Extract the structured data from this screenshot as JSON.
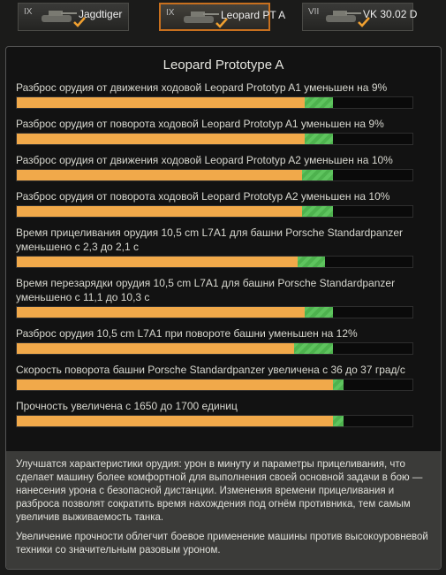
{
  "tabs": [
    {
      "tier": "IX",
      "name": "Jagdtiger"
    },
    {
      "tier": "IX",
      "name": "Leopard PT A"
    },
    {
      "tier": "VII",
      "name": "VK 30.02 D"
    }
  ],
  "panel": {
    "title": "Leopard Prototype A",
    "items": [
      {
        "text": "Разброс орудия от движения ходовой Leopard Prototyp A1 уменьшен на 9%",
        "bar_base": 72.7,
        "bar_total": 80
      },
      {
        "text": "Разброс орудия от поворота ходовой Leopard Prototyp A1 уменьшен на 9%",
        "bar_base": 72.7,
        "bar_total": 80
      },
      {
        "text": "Разброс орудия от движения ходовой Leopard Prototyp A2 уменьшен на 10%",
        "bar_base": 72.2,
        "bar_total": 80
      },
      {
        "text": "Разброс орудия от поворота ходовой Leopard Prototyp A2 уменьшен на 10%",
        "bar_base": 72.2,
        "bar_total": 80
      },
      {
        "text": "Время прицеливания орудия 10,5 cm L7A1 для башни Porsche Standardpanzer уменьшено с 2,3 до 2,1 с",
        "bar_base": 70.9,
        "bar_total": 77.8
      },
      {
        "text": "Время перезарядки орудия 10,5 cm L7A1 для башни Porsche Standardpanzer уменьшено с 11,1 до 10,3 с",
        "bar_base": 72.7,
        "bar_total": 80
      },
      {
        "text": "Разброс орудия 10,5 cm L7A1 при повороте башни уменьшен на 12%",
        "bar_base": 70,
        "bar_total": 80
      },
      {
        "text": "Скорость поворота башни Porsche Standardpanzer увеличена с 36 до 37 град/с",
        "bar_base": 80,
        "bar_total": 82.7
      },
      {
        "text": "Прочность увеличена с 1650 до 1700 единиц",
        "bar_base": 80,
        "bar_total": 82.7
      }
    ],
    "description": [
      "Улучшатся характеристики орудия: урон в минуту и параметры прицеливания, что сделает машину более комфортной для выполнения своей основной задачи в бою — нанесения урона с безопасной дистанции. Изменения времени прицеливания и разброса позволят сократить время нахождения под огнём противника, тем самым увеличив выживаемость танка.",
      "Увеличение прочности облегчит боевое применение машины против высокоуровневой техники со значительным разовым уроном."
    ]
  }
}
